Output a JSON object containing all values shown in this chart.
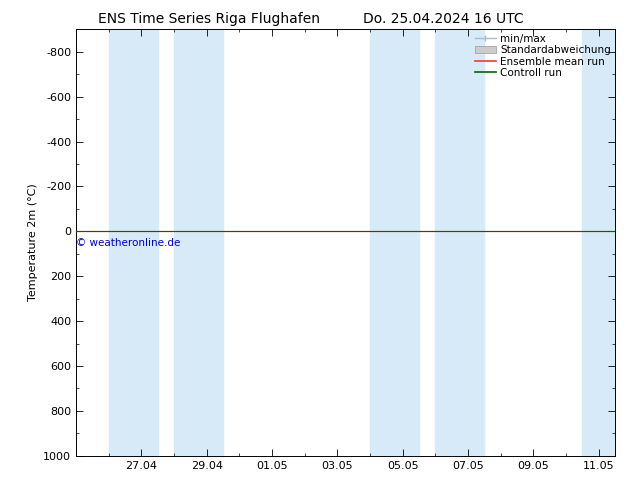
{
  "title": "ENS Time Series Riga Flughafen",
  "title_right": "Do. 25.04.2024 16 UTC",
  "ylabel": "Temperature 2m (°C)",
  "ylim_bottom": 1000,
  "ylim_top": -900,
  "yticks": [
    -800,
    -600,
    -400,
    -200,
    0,
    200,
    400,
    600,
    800,
    1000
  ],
  "xtick_labels": [
    "27.04",
    "29.04",
    "01.05",
    "03.05",
    "05.05",
    "07.05",
    "09.05",
    "11.05"
  ],
  "xtick_positions": [
    2,
    4,
    6,
    8,
    10,
    12,
    14,
    16
  ],
  "xlim": [
    0,
    16.5
  ],
  "shaded_bands": [
    [
      1.0,
      2.5
    ],
    [
      3.0,
      4.5
    ],
    [
      9.0,
      10.5
    ],
    [
      11.0,
      12.5
    ],
    [
      15.5,
      16.5
    ]
  ],
  "band_color": "#d6eaf8",
  "control_run_y": 0,
  "ensemble_mean_y": 0,
  "legend_entries": [
    "min/max",
    "Standardabweichung",
    "Ensemble mean run",
    "Controll run"
  ],
  "legend_colors_box": [
    "#c8dff0",
    "#d0d8e0"
  ],
  "legend_color_ens": "#ff3333",
  "legend_color_ctrl": "#006600",
  "watermark": "© weatheronline.de",
  "watermark_color": "#0000cc",
  "background_color": "#ffffff",
  "title_fontsize": 10,
  "label_fontsize": 8,
  "tick_fontsize": 8,
  "legend_fontsize": 7.5
}
